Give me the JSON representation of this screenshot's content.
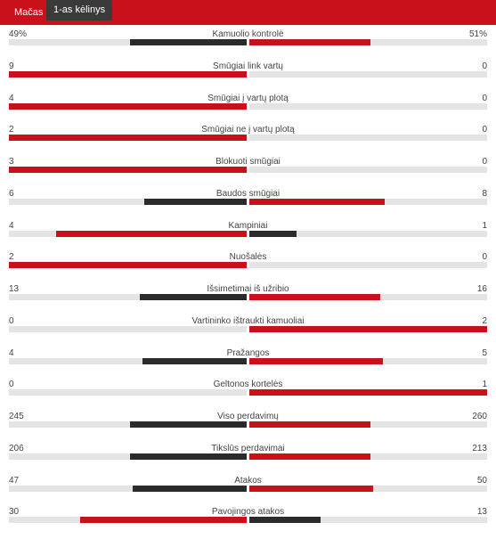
{
  "tabs": [
    {
      "label": "Mačas",
      "active": false
    },
    {
      "label": "1-as kėlinys",
      "active": true
    }
  ],
  "colors": {
    "accent": "#c8111b",
    "secondary": "#2b2b2b",
    "track": "#e4e4e4"
  },
  "stats": [
    {
      "label": "Kamuolio kontrolė",
      "left": "49%",
      "right": "51%",
      "left_share": 0.49,
      "right_share": 0.51,
      "left_color": "dark",
      "right_color": "red"
    },
    {
      "label": "Smūgiai link vartų",
      "left": "9",
      "right": "0",
      "left_share": 1.0,
      "right_share": 0.0,
      "left_color": "red",
      "right_color": "dark"
    },
    {
      "label": "Smūgiai į vartų plotą",
      "left": "4",
      "right": "0",
      "left_share": 1.0,
      "right_share": 0.0,
      "left_color": "red",
      "right_color": "dark"
    },
    {
      "label": "Smūgiai ne į vartų plotą",
      "left": "2",
      "right": "0",
      "left_share": 1.0,
      "right_share": 0.0,
      "left_color": "red",
      "right_color": "dark"
    },
    {
      "label": "Blokuoti smūgiai",
      "left": "3",
      "right": "0",
      "left_share": 1.0,
      "right_share": 0.0,
      "left_color": "red",
      "right_color": "dark"
    },
    {
      "label": "Baudos smūgiai",
      "left": "6",
      "right": "8",
      "left_share": 0.43,
      "right_share": 0.57,
      "left_color": "dark",
      "right_color": "red"
    },
    {
      "label": "Kampiniai",
      "left": "4",
      "right": "1",
      "left_share": 0.8,
      "right_share": 0.2,
      "left_color": "red",
      "right_color": "dark"
    },
    {
      "label": "Nuošalės",
      "left": "2",
      "right": "0",
      "left_share": 1.0,
      "right_share": 0.0,
      "left_color": "red",
      "right_color": "dark"
    },
    {
      "label": "Išsimetimai iš užribio",
      "left": "13",
      "right": "16",
      "left_share": 0.45,
      "right_share": 0.55,
      "left_color": "dark",
      "right_color": "red"
    },
    {
      "label": "Vartininko ištraukti kamuoliai",
      "left": "0",
      "right": "2",
      "left_share": 0.0,
      "right_share": 1.0,
      "left_color": "dark",
      "right_color": "red"
    },
    {
      "label": "Pražangos",
      "left": "4",
      "right": "5",
      "left_share": 0.44,
      "right_share": 0.56,
      "left_color": "dark",
      "right_color": "red"
    },
    {
      "label": "Geltonos kortelės",
      "left": "0",
      "right": "1",
      "left_share": 0.0,
      "right_share": 1.0,
      "left_color": "dark",
      "right_color": "red"
    },
    {
      "label": "Viso perdavimų",
      "left": "245",
      "right": "260",
      "left_share": 0.49,
      "right_share": 0.51,
      "left_color": "dark",
      "right_color": "red"
    },
    {
      "label": "Tikslūs perdavimai",
      "left": "206",
      "right": "213",
      "left_share": 0.49,
      "right_share": 0.51,
      "left_color": "dark",
      "right_color": "red"
    },
    {
      "label": "Atakos",
      "left": "47",
      "right": "50",
      "left_share": 0.48,
      "right_share": 0.52,
      "left_color": "dark",
      "right_color": "red"
    },
    {
      "label": "Pavojingos atakos",
      "left": "30",
      "right": "13",
      "left_share": 0.7,
      "right_share": 0.3,
      "left_color": "red",
      "right_color": "dark"
    }
  ]
}
